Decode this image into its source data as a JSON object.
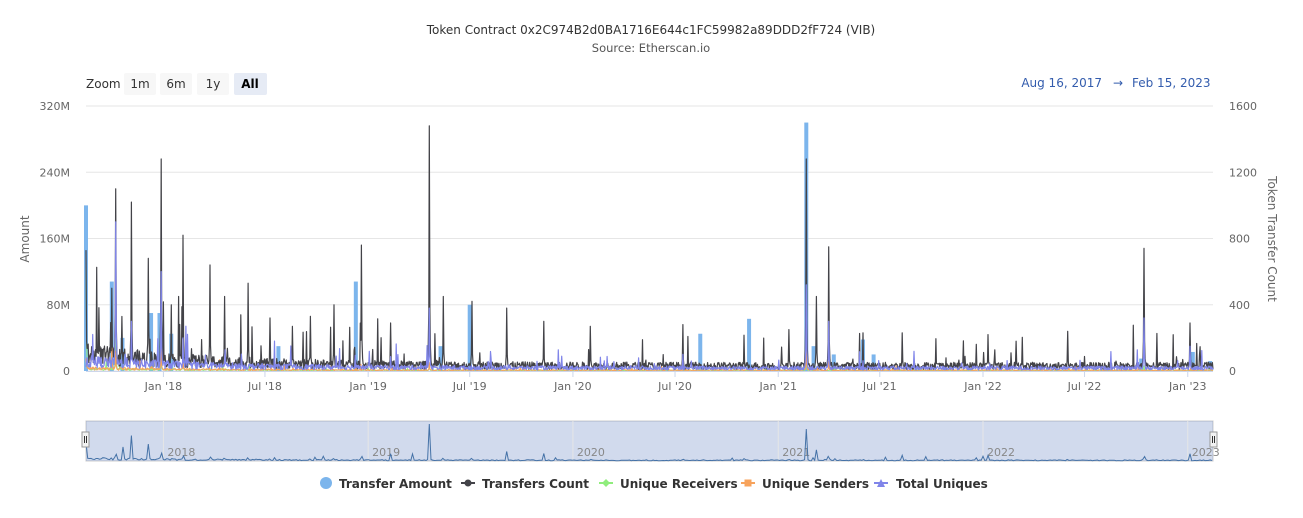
{
  "chart_data": {
    "type": "line",
    "title": "Token Contract 0x2C974B2d0BA1716E644c1FC59982a89DDD2fF724 (VIB)",
    "subtitle": "Source: Etherscan.io",
    "zoom": {
      "label": "Zoom",
      "buttons": [
        "1m",
        "6m",
        "1y",
        "All"
      ],
      "selected": "All"
    },
    "range": {
      "from": "Aug 16, 2017",
      "separator": "→",
      "to": "Feb 15, 2023"
    },
    "x_range": [
      "2017-08-16",
      "2023-02-15"
    ],
    "x_ticks": [
      "Jan '18",
      "Jul '18",
      "Jan '19",
      "Jul '19",
      "Jan '20",
      "Jul '20",
      "Jan '21",
      "Jul '21",
      "Jan '22",
      "Jul '22",
      "Jan '23"
    ],
    "y_left": {
      "title": "Amount",
      "ticks": [
        "0",
        "80M",
        "160M",
        "240M",
        "320M"
      ],
      "range": [
        0,
        320000000
      ]
    },
    "y_right": {
      "title": "Token Transfer Count",
      "ticks": [
        "0",
        "400",
        "800",
        "1200",
        "1600"
      ],
      "range": [
        0,
        1600
      ]
    },
    "navigator_labels": [
      "2018",
      "2019",
      "2020",
      "2021",
      "2022",
      "2023"
    ],
    "grid": true,
    "legend_position": "bottom",
    "colors": {
      "transfer_amount": "#7cb5ec",
      "transfers_count": "#434348",
      "unique_receivers": "#90ed7d",
      "unique_senders": "#f7a35c",
      "total_uniques": "#8085e9"
    },
    "series": [
      {
        "name": "Transfer Amount",
        "axis": "left",
        "kind": "column",
        "points": [
          [
            "2017-08-16",
            200000000
          ],
          [
            "2017-10-01",
            108000000
          ],
          [
            "2017-10-20",
            40000000
          ],
          [
            "2017-12-10",
            70000000
          ],
          [
            "2017-12-25",
            70000000
          ],
          [
            "2018-01-15",
            45000000
          ],
          [
            "2018-07-25",
            30000000
          ],
          [
            "2018-12-10",
            108000000
          ],
          [
            "2019-05-10",
            30000000
          ],
          [
            "2019-07-01",
            80000000
          ],
          [
            "2020-08-15",
            45000000
          ],
          [
            "2020-11-10",
            63000000
          ],
          [
            "2021-02-20",
            300000000
          ],
          [
            "2021-03-05",
            30000000
          ],
          [
            "2021-04-10",
            20000000
          ],
          [
            "2021-06-01",
            38000000
          ],
          [
            "2021-06-20",
            20000000
          ],
          [
            "2022-10-10",
            15000000
          ],
          [
            "2023-01-10",
            23000000
          ],
          [
            "2023-02-10",
            12000000
          ]
        ]
      },
      {
        "name": "Transfers Count",
        "axis": "right",
        "kind": "line",
        "peaks": [
          [
            "2017-08-16",
            730
          ],
          [
            "2017-10-01",
            500
          ],
          [
            "2017-10-08",
            1100
          ],
          [
            "2017-11-05",
            1020
          ],
          [
            "2017-12-05",
            680
          ],
          [
            "2017-12-28",
            1280
          ],
          [
            "2018-01-15",
            400
          ],
          [
            "2018-02-05",
            820
          ],
          [
            "2018-03-25",
            640
          ],
          [
            "2018-04-20",
            450
          ],
          [
            "2018-06-01",
            530
          ],
          [
            "2018-07-10",
            320
          ],
          [
            "2018-09-20",
            330
          ],
          [
            "2018-11-01",
            400
          ],
          [
            "2018-12-20",
            760
          ],
          [
            "2019-02-10",
            290
          ],
          [
            "2019-04-20",
            1480
          ],
          [
            "2019-05-15",
            450
          ],
          [
            "2019-07-05",
            420
          ],
          [
            "2019-09-05",
            380
          ],
          [
            "2019-11-10",
            300
          ],
          [
            "2020-02-01",
            270
          ],
          [
            "2020-07-15",
            280
          ],
          [
            "2021-01-20",
            250
          ],
          [
            "2021-02-20",
            1280
          ],
          [
            "2021-03-10",
            450
          ],
          [
            "2021-04-01",
            750
          ],
          [
            "2021-06-01",
            230
          ],
          [
            "2021-08-10",
            230
          ],
          [
            "2022-01-10",
            220
          ],
          [
            "2022-03-01",
            180
          ],
          [
            "2022-06-01",
            240
          ],
          [
            "2022-10-15",
            740
          ],
          [
            "2023-01-05",
            290
          ]
        ]
      },
      {
        "name": "Unique Receivers",
        "axis": "right",
        "kind": "line",
        "peaks": [
          [
            "2017-08-16",
            650
          ],
          [
            "2017-10-08",
            250
          ],
          [
            "2017-12-28",
            120
          ],
          [
            "2018-02-05",
            60
          ],
          [
            "2019-04-20",
            40
          ],
          [
            "2021-02-20",
            80
          ],
          [
            "2022-10-15",
            30
          ]
        ]
      },
      {
        "name": "Unique Senders",
        "axis": "right",
        "kind": "line",
        "peaks": [
          [
            "2017-08-16",
            10
          ],
          [
            "2017-10-01",
            160
          ],
          [
            "2017-10-08",
            120
          ],
          [
            "2017-12-28",
            140
          ],
          [
            "2018-02-05",
            70
          ],
          [
            "2019-04-20",
            50
          ],
          [
            "2021-02-20",
            120
          ],
          [
            "2021-04-01",
            60
          ]
        ]
      },
      {
        "name": "Total Uniques",
        "axis": "right",
        "kind": "line",
        "peaks": [
          [
            "2017-10-08",
            900
          ],
          [
            "2017-11-05",
            300
          ],
          [
            "2017-12-28",
            600
          ],
          [
            "2018-02-05",
            200
          ],
          [
            "2019-04-20",
            380
          ],
          [
            "2021-02-20",
            520
          ],
          [
            "2021-04-01",
            300
          ],
          [
            "2022-10-15",
            320
          ],
          [
            "2023-01-05",
            150
          ]
        ]
      }
    ],
    "legend": [
      "Transfer Amount",
      "Transfers Count",
      "Unique Receivers",
      "Unique Senders",
      "Total Uniques"
    ]
  }
}
